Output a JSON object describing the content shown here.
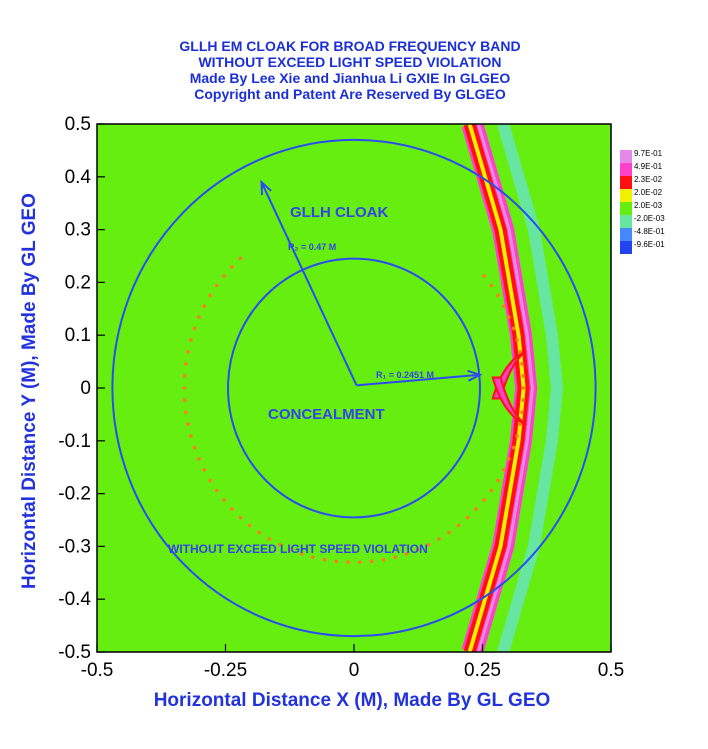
{
  "chart_data": {
    "type": "heatmap",
    "title_lines": [
      "GLLH EM CLOAK FOR BROAD FREQUENCY BAND",
      "WITHOUT EXCEED LIGHT SPEED VIOLATION",
      "Made By Lee Xie and Jianhua Li GXIE In GLGEO",
      "Copyright and Patent Are Reserved By GLGEO"
    ],
    "xlabel": "Horizontal Distance X (M), Made By GL GEO",
    "ylabel": "Horizontal Distance Y (M), Made By GL GEO",
    "xlim": [
      -0.5,
      0.5
    ],
    "ylim": [
      -0.5,
      0.5
    ],
    "x_ticks": [
      "-0.5",
      "-0.25",
      "0",
      "0.25",
      "0.5"
    ],
    "y_ticks": [
      "0.5",
      "0.4",
      "0.3",
      "0.2",
      "0.1",
      "0",
      "-0.1",
      "-0.2",
      "-0.3",
      "-0.4",
      "-0.5"
    ],
    "legend": {
      "placement": "right",
      "levels": [
        "9.7E-01",
        "4.9E-01",
        "2.3E-02",
        "2.0E-02",
        "2.0E-03",
        "-2.0E-03",
        "-4.8E-01",
        "-9.6E-01"
      ],
      "colors": [
        "#e48ae6",
        "#ff40c8",
        "#ff1010",
        "#f0f000",
        "#66ee10",
        "#66e6a0",
        "#4488ff",
        "#2244ee"
      ]
    },
    "background_color": "#66ee10",
    "circles": [
      {
        "name": "outer",
        "center": [
          0,
          0
        ],
        "radius": 0.47
      },
      {
        "name": "inner",
        "center": [
          0,
          0
        ],
        "radius": 0.2451
      }
    ],
    "wavefront": {
      "description_x_at_y": [
        [
          -0.5,
          0.23
        ],
        [
          -0.3,
          0.29
        ],
        [
          -0.1,
          0.325
        ],
        [
          0,
          0.335
        ],
        [
          0.1,
          0.325
        ],
        [
          0.3,
          0.29
        ],
        [
          0.5,
          0.23
        ]
      ]
    },
    "annotations": {
      "cloak_label": "GLLH CLOAK",
      "r2_label": "R₂ = 0.47 M",
      "r1_label": "R₁ = 0.2451 M",
      "concealment_label": "CONCEALMENT",
      "bottom_label": "WITHOUT EXCEED LIGHT SPEED VIOLATION"
    },
    "grid": false
  }
}
